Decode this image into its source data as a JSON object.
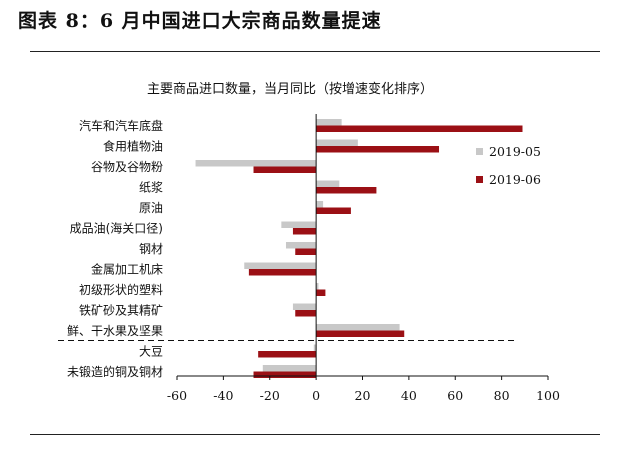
{
  "page": {
    "title": "图表 8：6 月中国进口大宗商品数量提速"
  },
  "colors": {
    "series_2019_05": "#c8c8c8",
    "series_2019_06": "#9b1015",
    "rule": "#222222"
  },
  "chart_data": {
    "type": "bar",
    "orientation": "horizontal",
    "title": "主要商品进口数量，当月同比（按增速变化排序）",
    "xlabel": "",
    "ylabel": "",
    "xlim": [
      -60,
      100
    ],
    "xticks": [
      -60,
      -40,
      -20,
      0,
      20,
      40,
      60,
      80,
      100
    ],
    "grid": false,
    "legend_position": "right",
    "categories": [
      "汽车和汽车底盘",
      "食用植物油",
      "谷物及谷物粉",
      "纸浆",
      "原油",
      "成品油(海关口径)",
      "钢材",
      "金属加工机床",
      "初级形状的塑料",
      "铁矿砂及其精矿",
      "鲜、干水果及坚果",
      "大豆",
      "未锻造的铜及铜材"
    ],
    "series": [
      {
        "name": "2019-05",
        "values": [
          11,
          18,
          -52,
          10,
          3,
          -15,
          -13,
          -31,
          1,
          -10,
          36,
          -1,
          -23
        ]
      },
      {
        "name": "2019-06",
        "values": [
          89,
          53,
          -27,
          26,
          15,
          -10,
          -9,
          -29,
          4,
          -9,
          38,
          -25,
          -27
        ]
      }
    ],
    "divider_after_index": 10
  }
}
